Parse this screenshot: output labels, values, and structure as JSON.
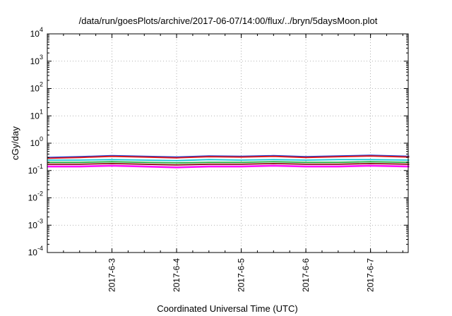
{
  "chart_data": {
    "type": "line",
    "title": "/data/run/goesPlots/archive/2017-06-07/14:00/flux/../bryn/5daysMoon.plot",
    "xlabel": "Coordinated Universal Time (UTC)",
    "ylabel": "cGy/day",
    "y_scale": "log",
    "ylim": [
      0.0001,
      10000
    ],
    "y_ticks": [
      {
        "base": "10",
        "exp": "4"
      },
      {
        "base": "10",
        "exp": "3"
      },
      {
        "base": "10",
        "exp": "2"
      },
      {
        "base": "10",
        "exp": "1"
      },
      {
        "base": "10",
        "exp": "0"
      },
      {
        "base": "10",
        "exp": "-1"
      },
      {
        "base": "10",
        "exp": "-2"
      },
      {
        "base": "10",
        "exp": "-3"
      },
      {
        "base": "10",
        "exp": "-4"
      }
    ],
    "x_range": [
      "2017-06-02 00:00",
      "2017-06-07 14:00"
    ],
    "x_ticks": [
      "2017-6-3",
      "2017-6-4",
      "2017-6-5",
      "2017-6-6",
      "2017-6-7"
    ],
    "grid": true,
    "colors": {
      "blue": "#1a3bd6",
      "red": "#e01818",
      "cyan": "#15c8d8",
      "green": "#22b040",
      "darkred": "#8b1010",
      "magenta": "#ff10ff"
    },
    "series": [
      {
        "color": "#1a3bd6",
        "x_days": [
          0,
          0.5,
          1,
          1.5,
          2,
          2.5,
          3,
          3.5,
          4,
          4.5,
          5,
          5.6
        ],
        "values": [
          0.3,
          0.32,
          0.35,
          0.33,
          0.31,
          0.34,
          0.33,
          0.35,
          0.32,
          0.34,
          0.36,
          0.33
        ]
      },
      {
        "color": "#e01818",
        "x_days": [
          0,
          0.5,
          1,
          1.5,
          2,
          2.5,
          3,
          3.5,
          4,
          4.5,
          5,
          5.6
        ],
        "values": [
          0.28,
          0.3,
          0.33,
          0.31,
          0.29,
          0.32,
          0.31,
          0.33,
          0.3,
          0.32,
          0.34,
          0.31
        ]
      },
      {
        "color": "#15c8d8",
        "x_days": [
          0,
          0.5,
          1,
          1.5,
          2,
          2.5,
          3,
          3.5,
          4,
          4.5,
          5,
          5.6
        ],
        "values": [
          0.24,
          0.24,
          0.25,
          0.24,
          0.23,
          0.25,
          0.24,
          0.25,
          0.24,
          0.25,
          0.25,
          0.24
        ]
      },
      {
        "color": "#22b040",
        "x_days": [
          0,
          0.5,
          1,
          1.5,
          2,
          2.5,
          3,
          3.5,
          4,
          4.5,
          5,
          5.6
        ],
        "values": [
          0.2,
          0.2,
          0.21,
          0.2,
          0.19,
          0.2,
          0.2,
          0.21,
          0.2,
          0.2,
          0.21,
          0.2
        ]
      },
      {
        "color": "#8b1010",
        "x_days": [
          0,
          0.5,
          1,
          1.5,
          2,
          2.5,
          3,
          3.5,
          4,
          4.5,
          5,
          5.6
        ],
        "values": [
          0.17,
          0.17,
          0.18,
          0.17,
          0.16,
          0.17,
          0.17,
          0.18,
          0.17,
          0.17,
          0.18,
          0.17
        ]
      },
      {
        "color": "#ff10ff",
        "x_days": [
          0,
          0.5,
          1,
          1.5,
          2,
          2.5,
          3,
          3.5,
          4,
          4.5,
          5,
          5.6
        ],
        "values": [
          0.14,
          0.14,
          0.15,
          0.14,
          0.13,
          0.14,
          0.14,
          0.15,
          0.14,
          0.14,
          0.15,
          0.14
        ]
      }
    ]
  }
}
